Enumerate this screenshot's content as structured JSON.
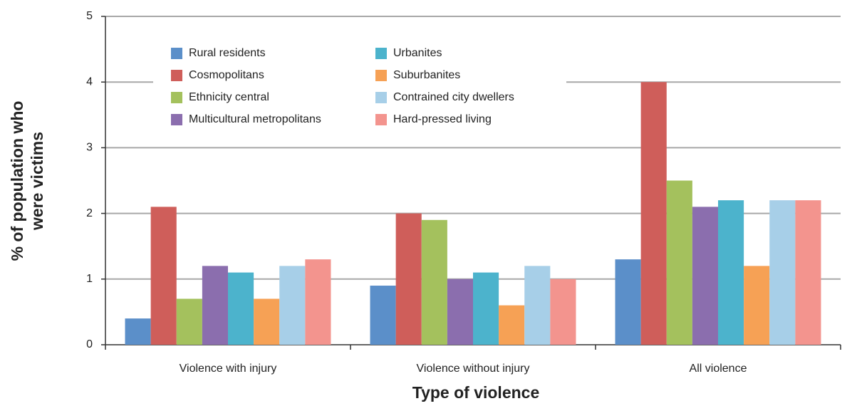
{
  "chart_data": {
    "type": "bar",
    "xlabel": "Type of violence",
    "ylabel": [
      "% of population who",
      "were victims"
    ],
    "categories": [
      "Violence with injury",
      "Violence without injury",
      "All violence"
    ],
    "series": [
      {
        "name": "Rural residents",
        "color": "#5b8fc9",
        "values": [
          0.4,
          0.9,
          1.3
        ]
      },
      {
        "name": "Cosmopolitans",
        "color": "#cf5e5a",
        "values": [
          2.1,
          2.0,
          4.0
        ]
      },
      {
        "name": "Ethnicity central",
        "color": "#a4c15d",
        "values": [
          0.7,
          1.9,
          2.5
        ]
      },
      {
        "name": "Multicultural metropolitans",
        "color": "#8b6eae",
        "values": [
          1.2,
          1.0,
          2.1
        ]
      },
      {
        "name": "Urbanites",
        "color": "#4cb3cc",
        "values": [
          1.1,
          1.1,
          2.2
        ]
      },
      {
        "name": "Suburbanites",
        "color": "#f6a155",
        "values": [
          0.7,
          0.6,
          1.2
        ]
      },
      {
        "name": "Contrained city dwellers",
        "color": "#a7cfe8",
        "values": [
          1.2,
          1.2,
          2.2
        ]
      },
      {
        "name": "Hard-pressed living",
        "color": "#f3948e",
        "values": [
          1.3,
          1.0,
          2.2
        ]
      }
    ],
    "ylim": [
      0,
      5
    ],
    "yticks": [
      0,
      1,
      2,
      3,
      4,
      5
    ],
    "grid": true
  }
}
